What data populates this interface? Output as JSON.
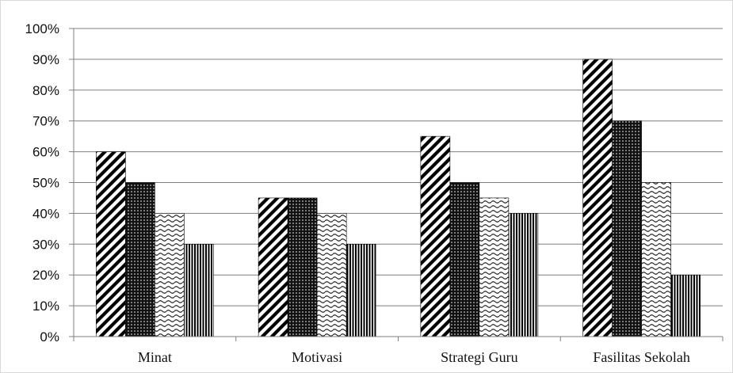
{
  "chart_data": {
    "type": "bar",
    "title": "",
    "xlabel": "",
    "ylabel": "",
    "categories": [
      "Minat",
      "Motivasi",
      "Strategi Guru",
      "Fasilitas Sekolah"
    ],
    "series": [
      {
        "values": [
          60,
          45,
          65,
          90
        ],
        "pattern": "diagonal-stripes"
      },
      {
        "values": [
          50,
          45,
          50,
          70
        ],
        "pattern": "dotted"
      },
      {
        "values": [
          40,
          40,
          45,
          50
        ],
        "pattern": "waves"
      },
      {
        "values": [
          30,
          30,
          40,
          20
        ],
        "pattern": "vertical-stripes"
      }
    ],
    "ylim": [
      0,
      100
    ],
    "yticks": [
      "0%",
      "10%",
      "20%",
      "30%",
      "40%",
      "50%",
      "60%",
      "70%",
      "80%",
      "90%",
      "100%"
    ],
    "grid": true,
    "legend": "none",
    "colors": {
      "bar_stroke": "#000000",
      "grid": "#7f7f7f",
      "text": "#111111"
    }
  }
}
